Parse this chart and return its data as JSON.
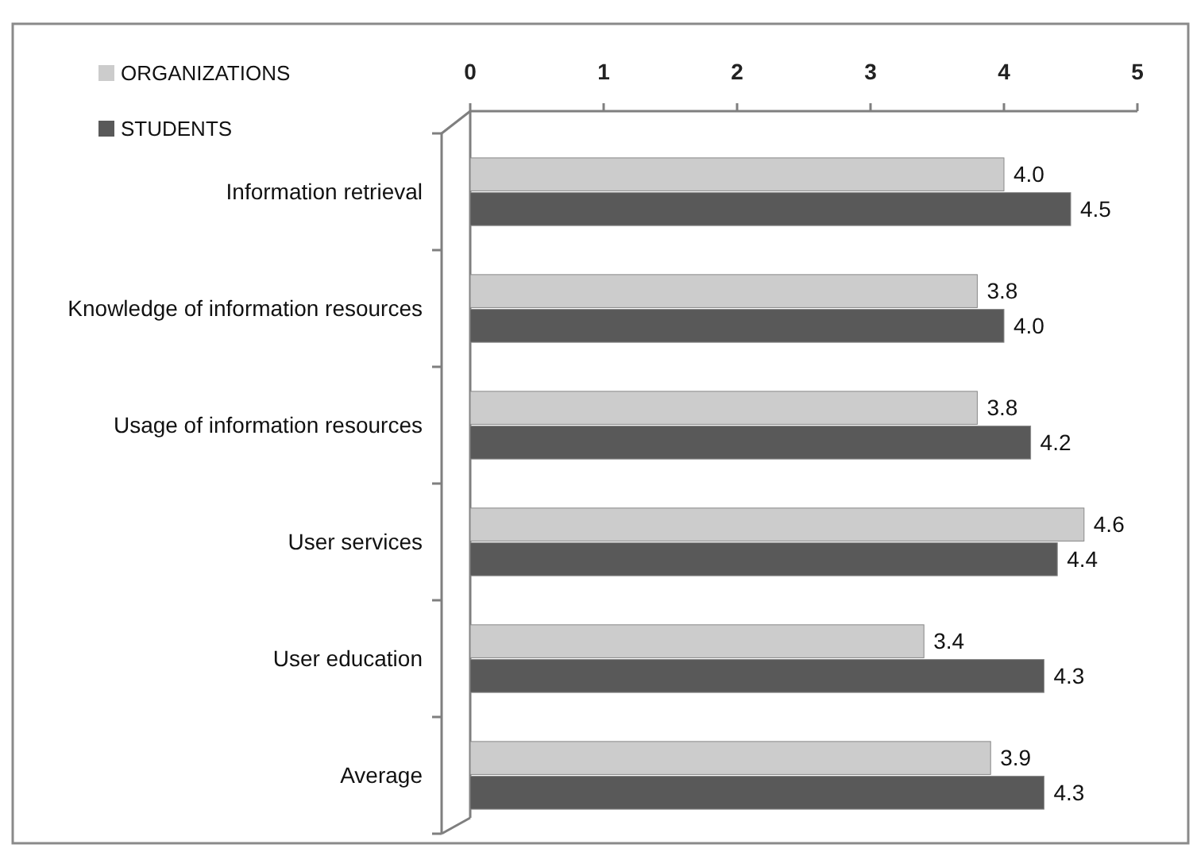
{
  "chart_data": {
    "type": "bar",
    "orientation": "horizontal",
    "categories": [
      "Information retrieval",
      "Knowledge of information resources",
      "Usage of information resources",
      "User services",
      "User education",
      "Average"
    ],
    "series": [
      {
        "name": "ORGANIZATIONS",
        "color": "#cccccc",
        "values": [
          4.0,
          3.8,
          3.8,
          4.6,
          3.4,
          3.9
        ],
        "value_labels": [
          "4.0",
          "3.8",
          "3.8",
          "4.6",
          "3.4",
          "3.9"
        ]
      },
      {
        "name": "STUDENTS",
        "color": "#595959",
        "values": [
          4.5,
          4.0,
          4.2,
          4.4,
          4.3,
          4.3
        ],
        "value_labels": [
          "4.5",
          "4.0",
          "4.2",
          "4.4",
          "4.3",
          "4.3"
        ]
      }
    ],
    "xlim": [
      0,
      5
    ],
    "xticks": [
      0,
      1,
      2,
      3,
      4,
      5
    ],
    "legend": "top left"
  }
}
